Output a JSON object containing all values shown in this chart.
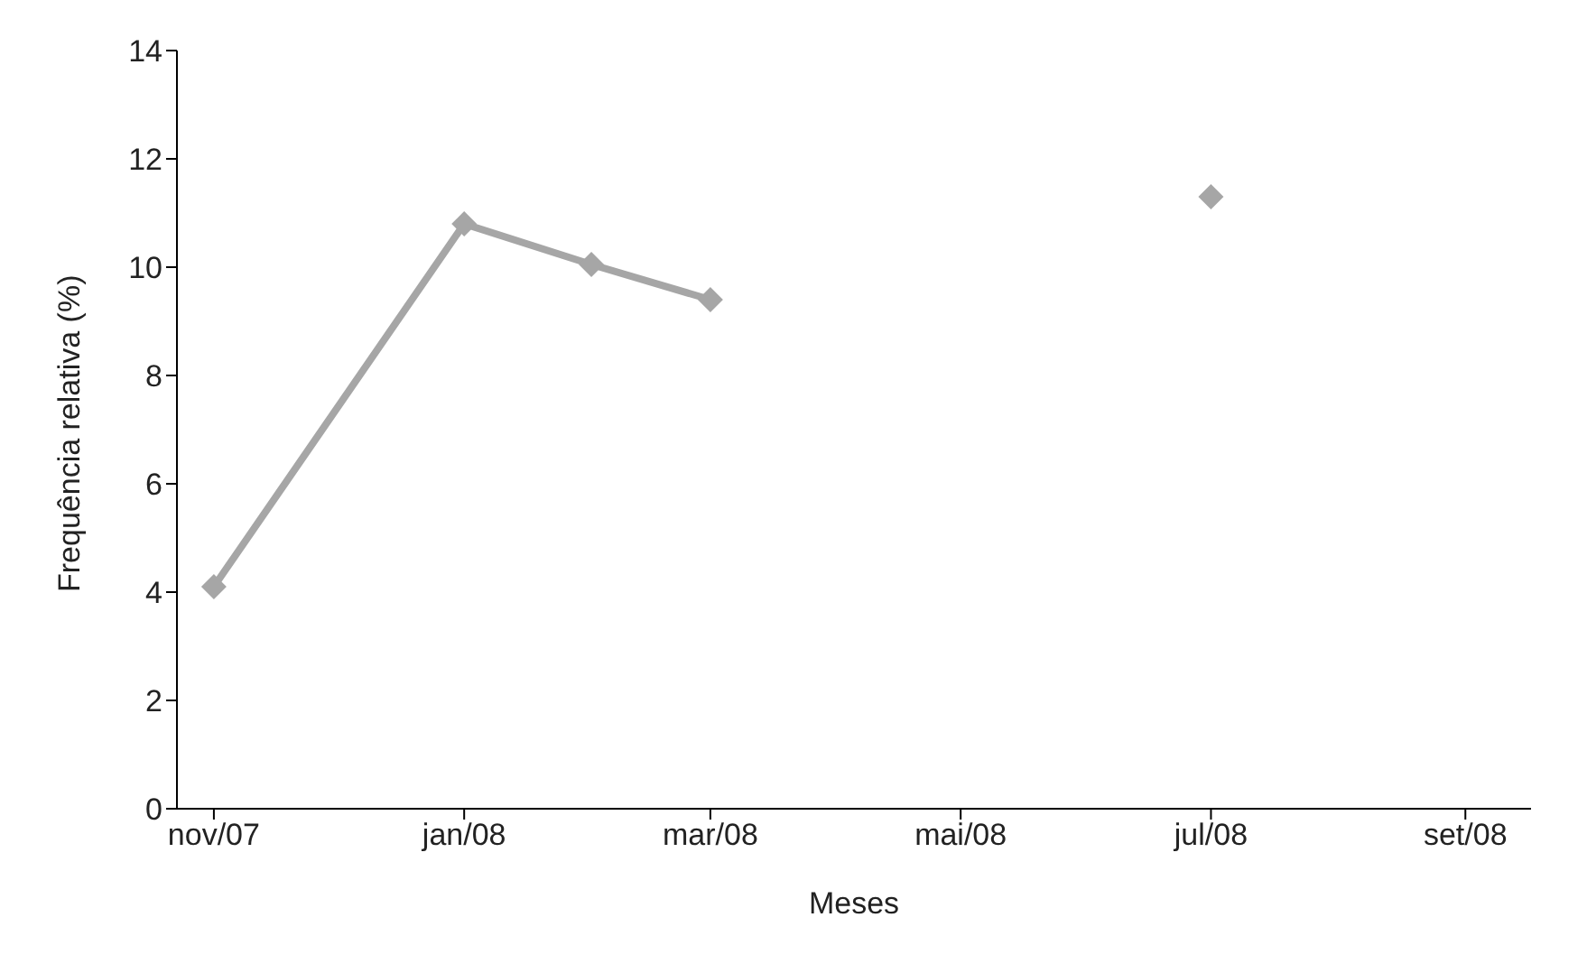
{
  "chart_data": {
    "type": "line",
    "xlabel": "Meses",
    "ylabel": "Frequência relativa (%)",
    "x": [
      "2007-11",
      "2008-01",
      "2008-02",
      "2008-03",
      "2008-04",
      "2008-05",
      "2008-06",
      "2008-07"
    ],
    "series": [
      {
        "color": "#a6a6a6",
        "values": [
          4.1,
          10.8,
          10.05,
          9.4,
          null,
          null,
          null,
          11.3
        ]
      }
    ],
    "xlim": [
      "2007-10-23",
      "2008-09-17"
    ],
    "xticks": [
      {
        "value": "2007-11",
        "label": "nov/07"
      },
      {
        "value": "2008-01",
        "label": "jan/08"
      },
      {
        "value": "2008-03",
        "label": "mar/08"
      },
      {
        "value": "2008-05",
        "label": "mai/08"
      },
      {
        "value": "2008-07",
        "label": "jul/08"
      },
      {
        "value": "2008-09",
        "label": "set/08"
      }
    ],
    "ylim": [
      0,
      14
    ],
    "yticks": [
      0,
      2,
      4,
      6,
      8,
      10,
      12,
      14
    ],
    "grid": false,
    "legend": false,
    "marker": "diamond",
    "line_style": "solid"
  }
}
